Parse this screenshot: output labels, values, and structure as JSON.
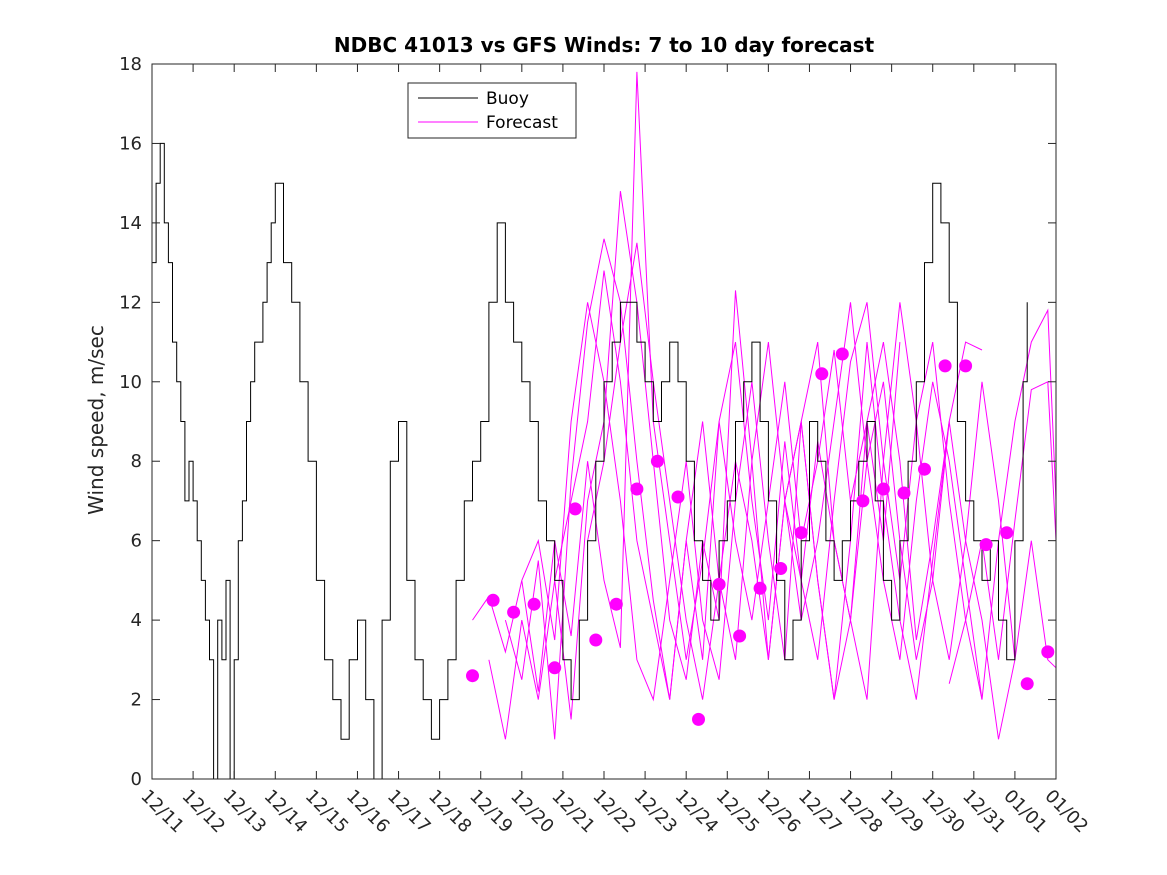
{
  "chart_data": {
    "type": "line",
    "title": "NDBC 41013 vs GFS Winds: 7 to 10 day forecast",
    "xlabel": "",
    "ylabel": "Wind speed, m/sec",
    "xlim": [
      0,
      22
    ],
    "ylim": [
      0,
      18
    ],
    "x_tick_labels": [
      "12/11",
      "12/12",
      "12/13",
      "12/14",
      "12/15",
      "12/16",
      "12/17",
      "12/18",
      "12/19",
      "12/20",
      "12/21",
      "12/22",
      "12/23",
      "12/24",
      "12/25",
      "12/26",
      "12/27",
      "12/28",
      "12/29",
      "12/30",
      "12/31",
      "01/01",
      "01/02"
    ],
    "y_ticks": [
      0,
      2,
      4,
      6,
      8,
      10,
      12,
      14,
      16,
      18
    ],
    "legend": {
      "position": "top-left",
      "entries": [
        {
          "label": "Buoy",
          "color": "#000000"
        },
        {
          "label": "Forecast",
          "color": "#ff00ff"
        }
      ]
    },
    "colors": {
      "buoy": "#000000",
      "forecast": "#ff00ff"
    },
    "series": [
      {
        "name": "Buoy",
        "x": [
          0,
          0.1,
          0.2,
          0.3,
          0.4,
          0.5,
          0.6,
          0.7,
          0.8,
          0.9,
          1.0,
          1.1,
          1.2,
          1.3,
          1.4,
          1.5,
          1.6,
          1.7,
          1.8,
          1.9,
          2.0,
          2.1,
          2.2,
          2.3,
          2.4,
          2.5,
          2.6,
          2.7,
          2.8,
          2.9,
          3.0,
          3.2,
          3.4,
          3.6,
          3.8,
          4.0,
          4.2,
          4.4,
          4.6,
          4.8,
          5.0,
          5.2,
          5.4,
          5.6,
          5.8,
          6.0,
          6.2,
          6.4,
          6.6,
          6.8,
          7.0,
          7.2,
          7.4,
          7.6,
          7.8,
          8.0,
          8.2,
          8.4,
          8.6,
          8.8,
          9.0,
          9.2,
          9.4,
          9.6,
          9.8,
          10.0,
          10.2,
          10.4,
          10.6,
          10.8,
          11.0,
          11.2,
          11.4,
          11.6,
          11.8,
          12.0,
          12.2,
          12.4,
          12.6,
          12.8,
          13.0,
          13.2,
          13.4,
          13.6,
          13.8,
          14.0,
          14.2,
          14.4,
          14.6,
          14.8,
          15.0,
          15.2,
          15.4,
          15.6,
          15.8,
          16.0,
          16.2,
          16.4,
          16.6,
          16.8,
          17.0,
          17.2,
          17.4,
          17.6,
          17.8,
          18.0,
          18.2,
          18.4,
          18.6,
          18.8,
          19.0,
          19.2,
          19.4,
          19.6,
          19.8,
          20.0,
          20.2,
          20.4,
          20.6,
          20.8,
          21.0,
          21.2,
          21.3
        ],
        "values": [
          13,
          15,
          16,
          14,
          13,
          11,
          10,
          9,
          7,
          8,
          7,
          6,
          5,
          4,
          3,
          0,
          4,
          3,
          5,
          0,
          3,
          6,
          7,
          9,
          10,
          11,
          11,
          12,
          13,
          14,
          15,
          13,
          12,
          10,
          8,
          5,
          3,
          2,
          1,
          3,
          4,
          2,
          0,
          4,
          8,
          9,
          5,
          3,
          2,
          1,
          2,
          3,
          5,
          7,
          8,
          9,
          12,
          14,
          12,
          11,
          10,
          9,
          7,
          6,
          5,
          3,
          2,
          4,
          6,
          8,
          10,
          11,
          12,
          12,
          11,
          10,
          9,
          10,
          11,
          10,
          8,
          6,
          5,
          4,
          6,
          7,
          9,
          10,
          11,
          9,
          7,
          5,
          3,
          4,
          6,
          9,
          8,
          6,
          5,
          6,
          7,
          8,
          9,
          7,
          5,
          4,
          6,
          8,
          10,
          13,
          15,
          14,
          12,
          9,
          7,
          6,
          5,
          6,
          4,
          3,
          6,
          10,
          12
        ]
      }
    ],
    "forecast_lines": [
      {
        "name": "Forecast run 1",
        "x": [
          7.8,
          8.2,
          8.6,
          9.0,
          9.4,
          9.8,
          10.2,
          10.6,
          11.0,
          11.4,
          11.8,
          12.2,
          12.6,
          13.0,
          13.4,
          13.8,
          14.2,
          14.6,
          15.0,
          15.4,
          15.8,
          16.2,
          16.6,
          17.0,
          17.4,
          17.8,
          18.2
        ],
        "values": [
          4.0,
          4.6,
          3.2,
          5.0,
          2.2,
          6.0,
          3.6,
          8.0,
          5.0,
          3.3,
          17.8,
          9.0,
          6.0,
          3.0,
          5.5,
          9.0,
          6.0,
          4.0,
          7.0,
          10.0,
          6.0,
          8.0,
          10.8,
          7.0,
          9.0,
          6.0,
          11.0
        ]
      },
      {
        "name": "Forecast run 2",
        "x": [
          8.2,
          8.6,
          9.0,
          9.4,
          9.8,
          10.2,
          10.6,
          11.0,
          11.4,
          11.8,
          12.2,
          12.6,
          13.0,
          13.4,
          13.8,
          14.2,
          14.6,
          15.0,
          15.4,
          15.8,
          16.2,
          16.6,
          17.0,
          17.4,
          17.8,
          18.2,
          18.6,
          19.0,
          19.4
        ],
        "values": [
          3.0,
          1.0,
          4.0,
          2.0,
          5.0,
          1.5,
          7.0,
          9.0,
          14.8,
          12.0,
          8.0,
          4.0,
          2.5,
          6.0,
          4.0,
          12.3,
          8.0,
          3.0,
          7.0,
          9.0,
          5.0,
          2.0,
          6.0,
          11.0,
          7.0,
          4.0,
          2.0,
          5.5,
          9.0
        ]
      },
      {
        "name": "Forecast run 3",
        "x": [
          8.6,
          9.0,
          9.4,
          9.8,
          10.2,
          10.6,
          11.0,
          11.4,
          11.8,
          12.2,
          12.6,
          13.0,
          13.4,
          13.8,
          14.2,
          14.6,
          15.0,
          15.4,
          15.8,
          16.2,
          16.6,
          17.0,
          17.4,
          17.8,
          18.2,
          18.6,
          19.0,
          19.4,
          19.8,
          20.2
        ],
        "values": [
          4.0,
          2.5,
          5.5,
          1.0,
          7.5,
          11.5,
          13.6,
          12.0,
          8.0,
          4.5,
          2.0,
          6.0,
          3.0,
          9.0,
          11.0,
          7.0,
          4.0,
          8.5,
          5.0,
          3.0,
          7.0,
          10.5,
          12.0,
          8.0,
          5.0,
          9.0,
          11.0,
          7.0,
          4.0,
          2.0
        ]
      },
      {
        "name": "Forecast run 4",
        "x": [
          9.0,
          9.4,
          9.8,
          10.2,
          10.6,
          11.0,
          11.4,
          11.8,
          12.2,
          12.6,
          13.0,
          13.4,
          13.8,
          14.2,
          14.6,
          15.0,
          15.4,
          15.8,
          16.2,
          16.6,
          17.0,
          17.4,
          17.8,
          18.2,
          18.6,
          19.0,
          19.4,
          19.8,
          20.2,
          20.6,
          21.0
        ],
        "values": [
          5.0,
          6.0,
          3.5,
          9.0,
          12.0,
          10.0,
          7.0,
          3.0,
          2.0,
          5.0,
          8.0,
          4.0,
          2.5,
          7.0,
          10.0,
          6.0,
          3.0,
          9.0,
          11.0,
          6.0,
          4.0,
          2.0,
          8.0,
          12.0,
          9.0,
          5.0,
          3.0,
          6.0,
          10.0,
          7.0,
          3.0
        ]
      },
      {
        "name": "Forecast run 5",
        "x": [
          9.8,
          10.2,
          10.6,
          11.0,
          11.4,
          11.8,
          12.2,
          12.6,
          13.0,
          13.4,
          13.8,
          14.2,
          14.6,
          15.0,
          15.4,
          15.8,
          16.2,
          16.6,
          17.0,
          17.4,
          17.8,
          18.2,
          18.6,
          19.0,
          19.4,
          19.8,
          20.2,
          20.6,
          21.0,
          21.4,
          21.8,
          22.0
        ],
        "values": [
          5.0,
          7.0,
          9.0,
          12.8,
          10.0,
          6.0,
          4.0,
          2.0,
          6.0,
          9.0,
          5.0,
          3.0,
          8.0,
          11.0,
          7.0,
          4.0,
          6.0,
          9.0,
          12.0,
          8.0,
          5.0,
          3.0,
          7.0,
          10.0,
          8.0,
          5.0,
          2.0,
          6.0,
          9.0,
          11.0,
          11.8,
          7.0
        ]
      },
      {
        "name": "Forecast run 6",
        "x": [
          10.6,
          11.0,
          11.4,
          11.8,
          12.2,
          12.6,
          13.0,
          13.4,
          13.8,
          14.2,
          14.6,
          15.0,
          15.4,
          15.8,
          16.2,
          16.6,
          17.0,
          17.4,
          17.8,
          18.2,
          18.6,
          19.0,
          19.4,
          19.8,
          20.2,
          20.6,
          21.0,
          21.4,
          21.8,
          22.0
        ],
        "values": [
          6.0,
          8.0,
          11.0,
          13.5,
          10.0,
          7.0,
          4.0,
          2.0,
          5.0,
          8.0,
          6.0,
          3.0,
          7.0,
          9.0,
          5.0,
          2.0,
          4.0,
          8.0,
          10.0,
          6.0,
          3.0,
          5.0,
          9.0,
          6.0,
          4.0,
          1.0,
          3.0,
          6.0,
          3.0,
          2.8
        ]
      },
      {
        "name": "Forecast run 7",
        "x": [
          15.4,
          15.8,
          16.2,
          16.6,
          17.0,
          17.4,
          17.8,
          18.2,
          18.6,
          19.0,
          19.4,
          19.8,
          20.2
        ],
        "values": [
          7.0,
          5.0,
          8.5,
          6.0,
          4.0,
          9.0,
          11.0,
          8.0,
          3.5,
          6.0,
          9.0,
          11.0,
          10.8
        ]
      },
      {
        "name": "Forecast run 8",
        "x": [
          19.4,
          19.8,
          20.2,
          20.6,
          21.0,
          21.4,
          21.8,
          22.0
        ],
        "values": [
          2.4,
          4.0,
          6.0,
          3.0,
          6.5,
          9.8,
          10.0,
          6.0
        ]
      }
    ],
    "forecast_markers": {
      "x": [
        7.8,
        8.3,
        8.8,
        9.3,
        9.8,
        10.3,
        10.8,
        11.3,
        11.8,
        12.3,
        12.8,
        13.3,
        13.8,
        14.3,
        14.8,
        15.3,
        15.8,
        16.3,
        16.8,
        17.3,
        17.8,
        18.3,
        18.8,
        19.3,
        19.8,
        20.3,
        20.8,
        21.3,
        21.8
      ],
      "values": [
        2.6,
        4.5,
        4.2,
        4.4,
        2.8,
        6.8,
        3.5,
        4.4,
        7.3,
        8.0,
        7.1,
        1.5,
        4.9,
        3.6,
        4.8,
        5.3,
        6.2,
        10.2,
        10.7,
        7.0,
        7.3,
        7.2,
        7.8,
        10.4,
        10.4,
        5.9,
        6.2,
        2.4,
        3.2
      ]
    }
  }
}
